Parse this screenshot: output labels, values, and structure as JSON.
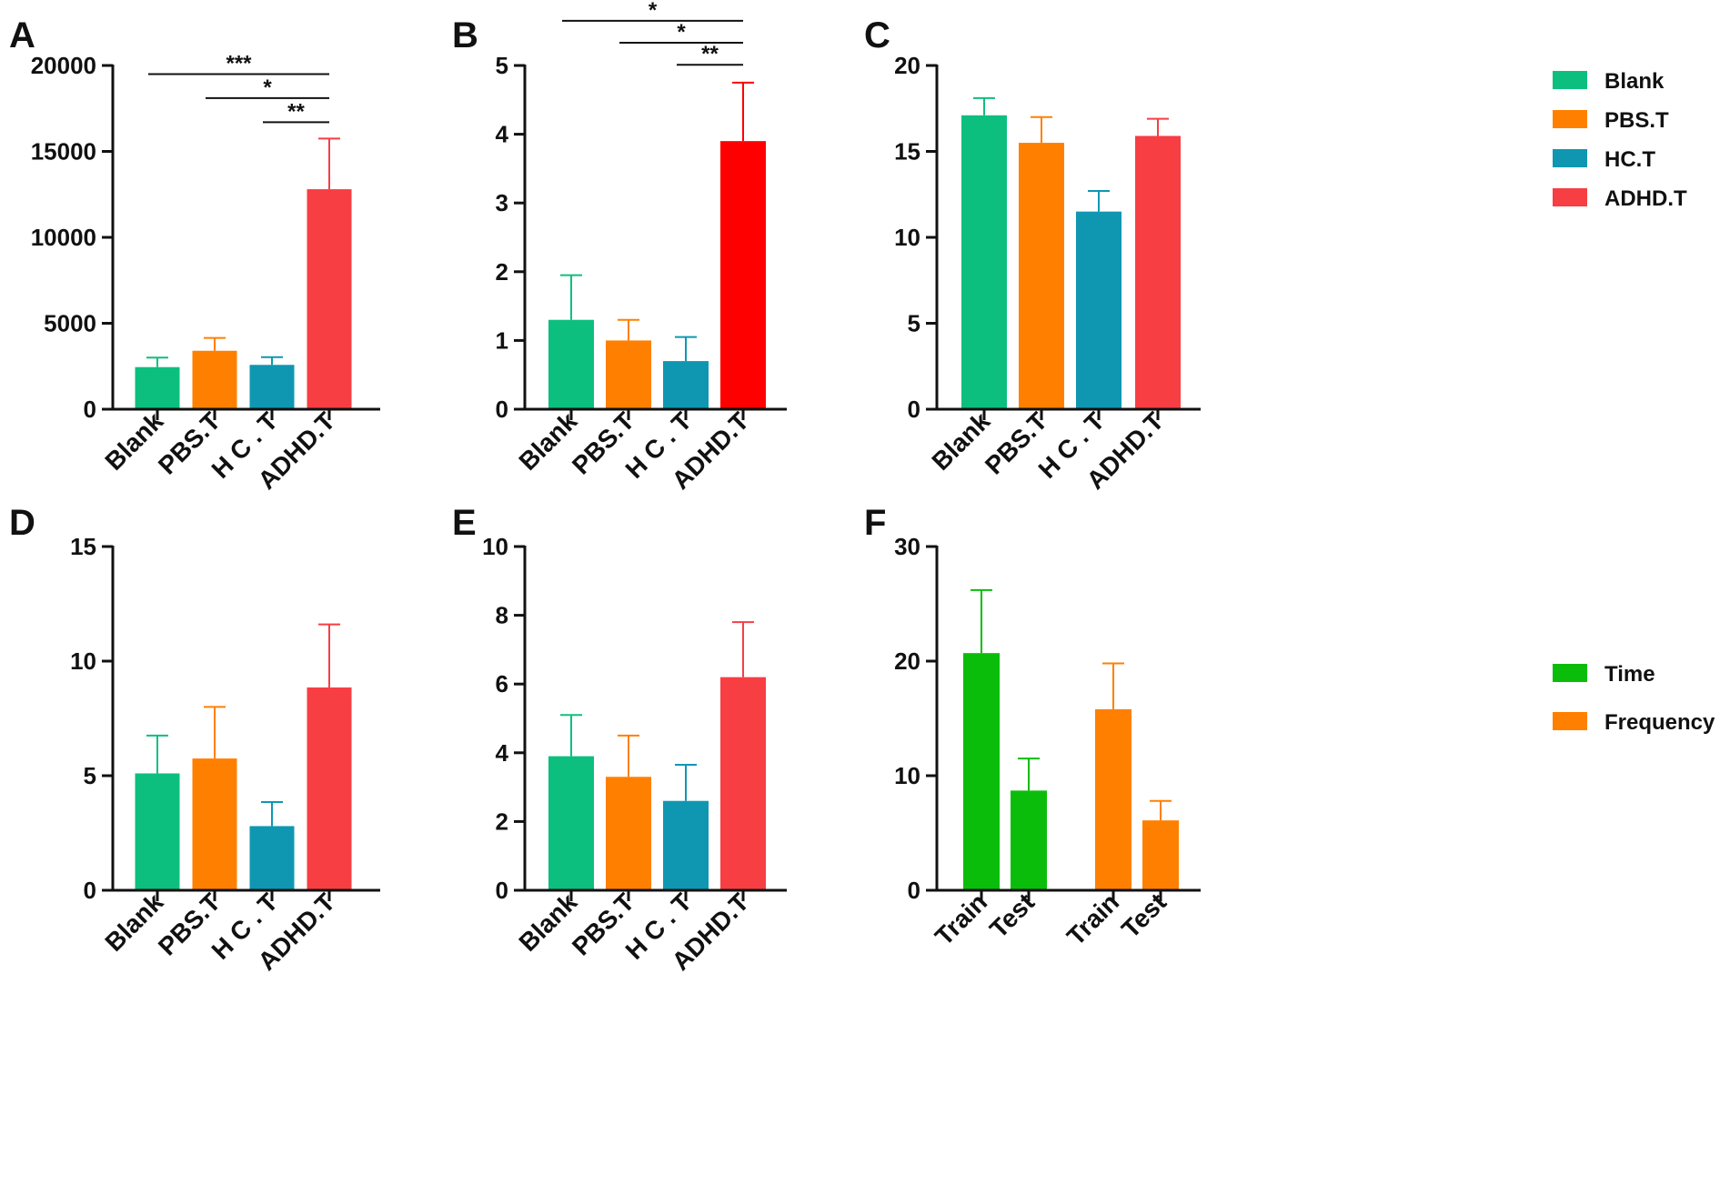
{
  "colors": {
    "blank": "#0DBF7E",
    "pbs": "#FF8000",
    "hc": "#0F97B2",
    "adhd": "#F73E43",
    "adhd_bright": "#FF0000",
    "time": "#0BBD0B",
    "frequency": "#FF8000",
    "axis": "#111111"
  },
  "legends": [
    {
      "name": "group-legend",
      "items": [
        {
          "label": "Blank",
          "color": "#0DBF7E"
        },
        {
          "label": "PBS.T",
          "color": "#FF8000"
        },
        {
          "label": "HC.T",
          "color": "#0F97B2"
        },
        {
          "label": "ADHD.T",
          "color": "#F73E43"
        }
      ]
    },
    {
      "name": "time-frequency-legend",
      "items": [
        {
          "label": "Time",
          "color": "#0BBD0B"
        },
        {
          "label": "Frequency",
          "color": "#FF8000"
        }
      ]
    }
  ],
  "chart_data": [
    {
      "panel": "A",
      "type": "bar",
      "categories": [
        "Blank",
        "PBS.T",
        "H C . T",
        "ADHD.T"
      ],
      "values": [
        2450,
        3400,
        2580,
        12800
      ],
      "errors": [
        550,
        750,
        450,
        2950
      ],
      "bar_colors": [
        "#0DBF7E",
        "#FF8000",
        "#0F97B2",
        "#F73E43"
      ],
      "ylim": [
        0,
        20000
      ],
      "yticks": [
        0,
        5000,
        10000,
        15000,
        20000
      ],
      "yticklabels": [
        "0",
        "5000",
        "10000",
        "15000",
        "20000"
      ],
      "significance": [
        {
          "from": 0,
          "to": 3,
          "label": "***",
          "y": 19500
        },
        {
          "from": 1,
          "to": 3,
          "label": "*",
          "y": 18100
        },
        {
          "from": 2,
          "to": 3,
          "label": "**",
          "y": 16700
        }
      ]
    },
    {
      "panel": "B",
      "type": "bar",
      "categories": [
        "Blank",
        "PBS.T",
        "H C . T",
        "ADHD.T"
      ],
      "values": [
        1.3,
        1.0,
        0.7,
        3.9
      ],
      "errors": [
        0.65,
        0.3,
        0.35,
        0.85
      ],
      "bar_colors": [
        "#0DBF7E",
        "#FF8000",
        "#0F97B2",
        "#FF0000"
      ],
      "ylim": [
        0,
        5
      ],
      "yticks": [
        0,
        1,
        2,
        3,
        4,
        5
      ],
      "yticklabels": [
        "0",
        "1",
        "2",
        "3",
        "4",
        "5"
      ],
      "significance": [
        {
          "from": 0,
          "to": 3,
          "label": "*",
          "y": 5.65
        },
        {
          "from": 1,
          "to": 3,
          "label": "*",
          "y": 5.33
        },
        {
          "from": 2,
          "to": 3,
          "label": "**",
          "y": 5.01
        }
      ]
    },
    {
      "panel": "C",
      "type": "bar",
      "categories": [
        "Blank",
        "PBS.T",
        "H C . T",
        "ADHD.T"
      ],
      "values": [
        17.1,
        15.5,
        11.5,
        15.9
      ],
      "errors": [
        1.0,
        1.5,
        1.2,
        1.0
      ],
      "bar_colors": [
        "#0DBF7E",
        "#FF8000",
        "#0F97B2",
        "#F73E43"
      ],
      "ylim": [
        0,
        20
      ],
      "yticks": [
        0,
        5,
        10,
        15,
        20
      ],
      "yticklabels": [
        "0",
        "5",
        "10",
        "15",
        "20"
      ],
      "significance": []
    },
    {
      "panel": "D",
      "type": "bar",
      "categories": [
        "Blank",
        "PBS.T",
        "H C . T",
        "ADHD.T"
      ],
      "values": [
        5.1,
        5.75,
        2.8,
        8.85
      ],
      "errors": [
        1.65,
        2.25,
        1.05,
        2.75
      ],
      "bar_colors": [
        "#0DBF7E",
        "#FF8000",
        "#0F97B2",
        "#F73E43"
      ],
      "ylim": [
        0,
        15
      ],
      "yticks": [
        0,
        5,
        10,
        15
      ],
      "yticklabels": [
        "0",
        "5",
        "10",
        "15"
      ],
      "significance": []
    },
    {
      "panel": "E",
      "type": "bar",
      "categories": [
        "Blank",
        "PBS.T",
        "H C . T",
        "ADHD.T"
      ],
      "values": [
        3.9,
        3.3,
        2.6,
        6.2
      ],
      "errors": [
        1.2,
        1.2,
        1.05,
        1.6
      ],
      "bar_colors": [
        "#0DBF7E",
        "#FF8000",
        "#0F97B2",
        "#F73E43"
      ],
      "ylim": [
        0,
        10
      ],
      "yticks": [
        0,
        2,
        4,
        6,
        8,
        10
      ],
      "yticklabels": [
        "0",
        "2",
        "4",
        "6",
        "8",
        "10"
      ],
      "significance": []
    },
    {
      "panel": "F",
      "type": "bar",
      "categories": [
        "Train",
        "Test",
        "Train",
        "Test"
      ],
      "series_names": [
        "Time",
        "Time",
        "Frequency",
        "Frequency"
      ],
      "values": [
        20.7,
        8.7,
        15.8,
        6.1
      ],
      "errors": [
        5.5,
        2.8,
        4.0,
        1.7
      ],
      "bar_colors": [
        "#0BBD0B",
        "#0BBD0B",
        "#FF8000",
        "#FF8000"
      ],
      "ylim": [
        0,
        30
      ],
      "yticks": [
        0,
        10,
        20,
        30
      ],
      "yticklabels": [
        "0",
        "10",
        "20",
        "30"
      ],
      "significance": []
    }
  ]
}
